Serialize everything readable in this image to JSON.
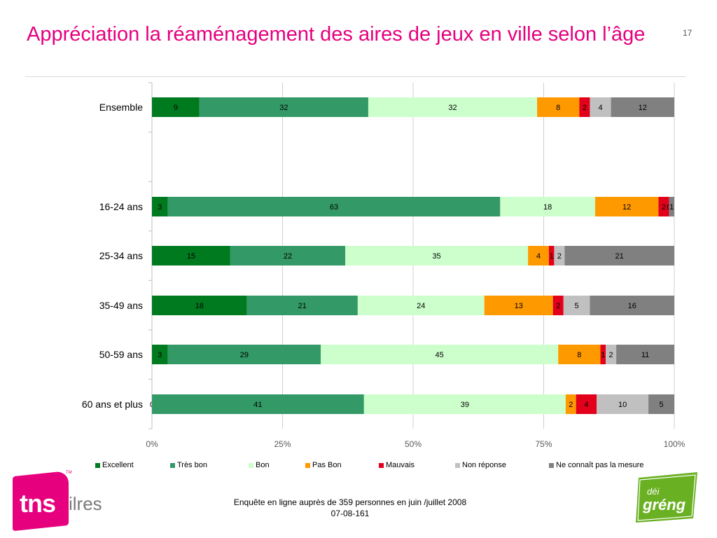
{
  "slide": {
    "title": "Appréciation la réaménagement des aires de jeux en ville selon l’âge",
    "page_number": "17",
    "footer_line1": "Enquête en ligne auprès de 359 personnes en juin /juillet 2008",
    "footer_line2": "07-08-161"
  },
  "logos": {
    "tns_mark": "tns",
    "tns_suffix": "ilres",
    "tns_tm": "TM",
    "dei_top": "déi",
    "dei_bottom": "gréng"
  },
  "colors": {
    "title": "#e6007e",
    "tns": "#e6007e",
    "dei_green": "#6ab023"
  },
  "chart_data": {
    "type": "bar",
    "orientation": "horizontal",
    "stacked": "percent",
    "categories": [
      "Ensemble",
      "",
      "16-24 ans",
      "25-34 ans",
      "35-49 ans",
      "50-59 ans",
      "60 ans et plus"
    ],
    "xlim": [
      0,
      100
    ],
    "x_ticks": [
      "0%",
      "25%",
      "50%",
      "75%",
      "100%"
    ],
    "grid": "vertical",
    "legend_position": "bottom",
    "series": [
      {
        "name": "Excellent",
        "color": "#007a1f",
        "values": [
          9,
          null,
          3,
          15,
          18,
          3,
          0
        ],
        "labels": [
          "9",
          "",
          "3",
          "15",
          "18",
          "3",
          "0"
        ]
      },
      {
        "name": "Très bon",
        "color": "#339966",
        "values": [
          32,
          null,
          63,
          22,
          21,
          29,
          41
        ],
        "labels": [
          "32",
          "",
          "63",
          "22",
          "21",
          "29",
          "41"
        ]
      },
      {
        "name": "Bon",
        "color": "#ccffcc",
        "values": [
          32,
          null,
          18,
          35,
          24,
          45,
          39
        ],
        "labels": [
          "32",
          "",
          "18",
          "35",
          "24",
          "45",
          "39"
        ]
      },
      {
        "name": "Pas Bon",
        "color": "#ff9900",
        "values": [
          8,
          null,
          12,
          4,
          13,
          8,
          2
        ],
        "labels": [
          "8",
          "",
          "12",
          "4",
          "13",
          "8",
          "2"
        ]
      },
      {
        "name": "Mauvais",
        "color": "#e3001b",
        "values": [
          2,
          null,
          2,
          1,
          2,
          1,
          4
        ],
        "labels": [
          "2",
          "",
          "2",
          "1",
          "2",
          "1",
          "4"
        ]
      },
      {
        "name": "Non réponse",
        "color": "#c0c0c0",
        "values": [
          4,
          null,
          0,
          2,
          5,
          2,
          10
        ],
        "labels": [
          "4",
          "",
          "0",
          "2",
          "5",
          "2",
          "10"
        ]
      },
      {
        "name": "Ne connaît pas la mesure",
        "color": "#808080",
        "values": [
          12,
          null,
          1,
          21,
          16,
          11,
          5
        ],
        "labels": [
          "12",
          "",
          "1",
          "21",
          "16",
          "11",
          "5"
        ]
      }
    ]
  }
}
